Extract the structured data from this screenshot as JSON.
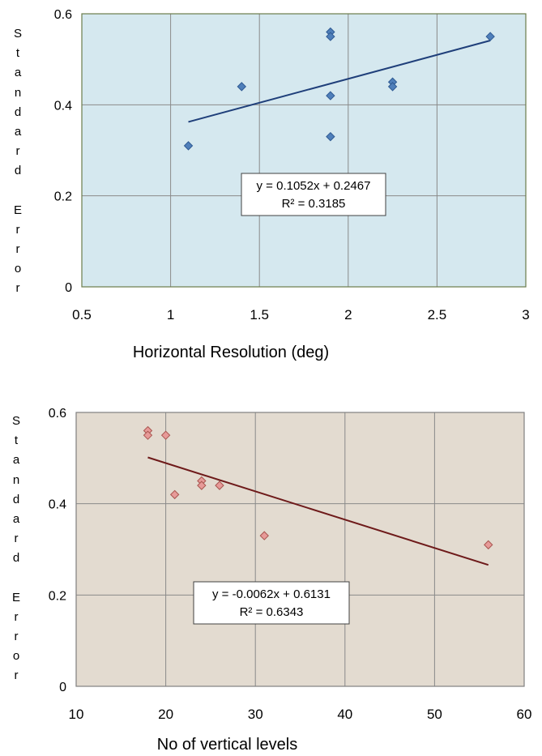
{
  "chart_data": [
    {
      "type": "scatter",
      "xlabel": "Horizontal Resolution (deg)",
      "ylabel": "Standard Error",
      "xlim": [
        0.5,
        3
      ],
      "ylim": [
        0,
        0.6
      ],
      "xticks": [
        "0.5",
        "1",
        "1.5",
        "2",
        "2.5",
        "3"
      ],
      "yticks": [
        "0",
        "0.2",
        "0.4",
        "0.6"
      ],
      "grid": true,
      "series": [
        {
          "x": [
            1.1,
            1.4,
            1.9,
            1.9,
            1.9,
            1.9,
            2.25,
            2.25,
            2.8
          ],
          "y": [
            0.31,
            0.44,
            0.56,
            0.55,
            0.42,
            0.33,
            0.45,
            0.44,
            0.55
          ]
        }
      ],
      "trendline": {
        "slope": 0.1052,
        "intercept": 0.2467,
        "x_range": [
          1.1,
          2.8
        ]
      },
      "annotation": {
        "equation": "y = 0.1052x + 0.2467",
        "r2": "R² = 0.3185"
      },
      "colors": {
        "plot_bg": "#d5e8ef",
        "marker": "#4f7fba",
        "marker_edge": "#2f5a93",
        "line": "#1f3f7a",
        "frame": "#6b7c4a"
      }
    },
    {
      "type": "scatter",
      "xlabel": "No of vertical levels",
      "ylabel": "Standard Error",
      "xlim": [
        10,
        60
      ],
      "ylim": [
        0,
        0.6
      ],
      "xticks": [
        "10",
        "20",
        "30",
        "40",
        "50",
        "60"
      ],
      "yticks": [
        "0",
        "0.2",
        "0.4",
        "0.6"
      ],
      "grid": true,
      "series": [
        {
          "x": [
            18,
            18,
            20,
            21,
            24,
            24,
            26,
            31,
            56
          ],
          "y": [
            0.56,
            0.55,
            0.55,
            0.42,
            0.45,
            0.44,
            0.44,
            0.33,
            0.31
          ]
        }
      ],
      "trendline": {
        "slope": -0.0062,
        "intercept": 0.6131,
        "x_range": [
          18,
          56
        ]
      },
      "annotation": {
        "equation": "y = -0.0062x + 0.6131",
        "r2": "R² = 0.6343"
      },
      "colors": {
        "plot_bg": "#e3dbd0",
        "marker": "#e79a98",
        "marker_edge": "#a8554f",
        "line": "#6e1a1a",
        "frame": "#808080"
      }
    }
  ]
}
